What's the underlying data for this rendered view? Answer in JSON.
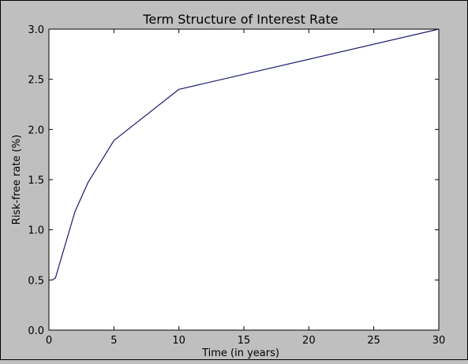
{
  "chart_data": {
    "type": "line",
    "title": "Term Structure of Interest Rate",
    "xlabel": "Time (in years)",
    "ylabel": "Risk-free rate (%)",
    "xlim": [
      0,
      30
    ],
    "ylim": [
      0.0,
      3.0
    ],
    "x_ticks": [
      "0",
      "5",
      "10",
      "15",
      "20",
      "25",
      "30"
    ],
    "y_ticks": [
      "0.0",
      "0.5",
      "1.0",
      "1.5",
      "2.0",
      "2.5",
      "3.0"
    ],
    "grid": false,
    "series": [
      {
        "x": [
          0.25,
          0.5,
          2,
          3,
          5,
          10,
          30
        ],
        "y": [
          0.5,
          0.52,
          1.18,
          1.47,
          1.89,
          2.4,
          3.0
        ],
        "color": "#191970"
      }
    ]
  }
}
